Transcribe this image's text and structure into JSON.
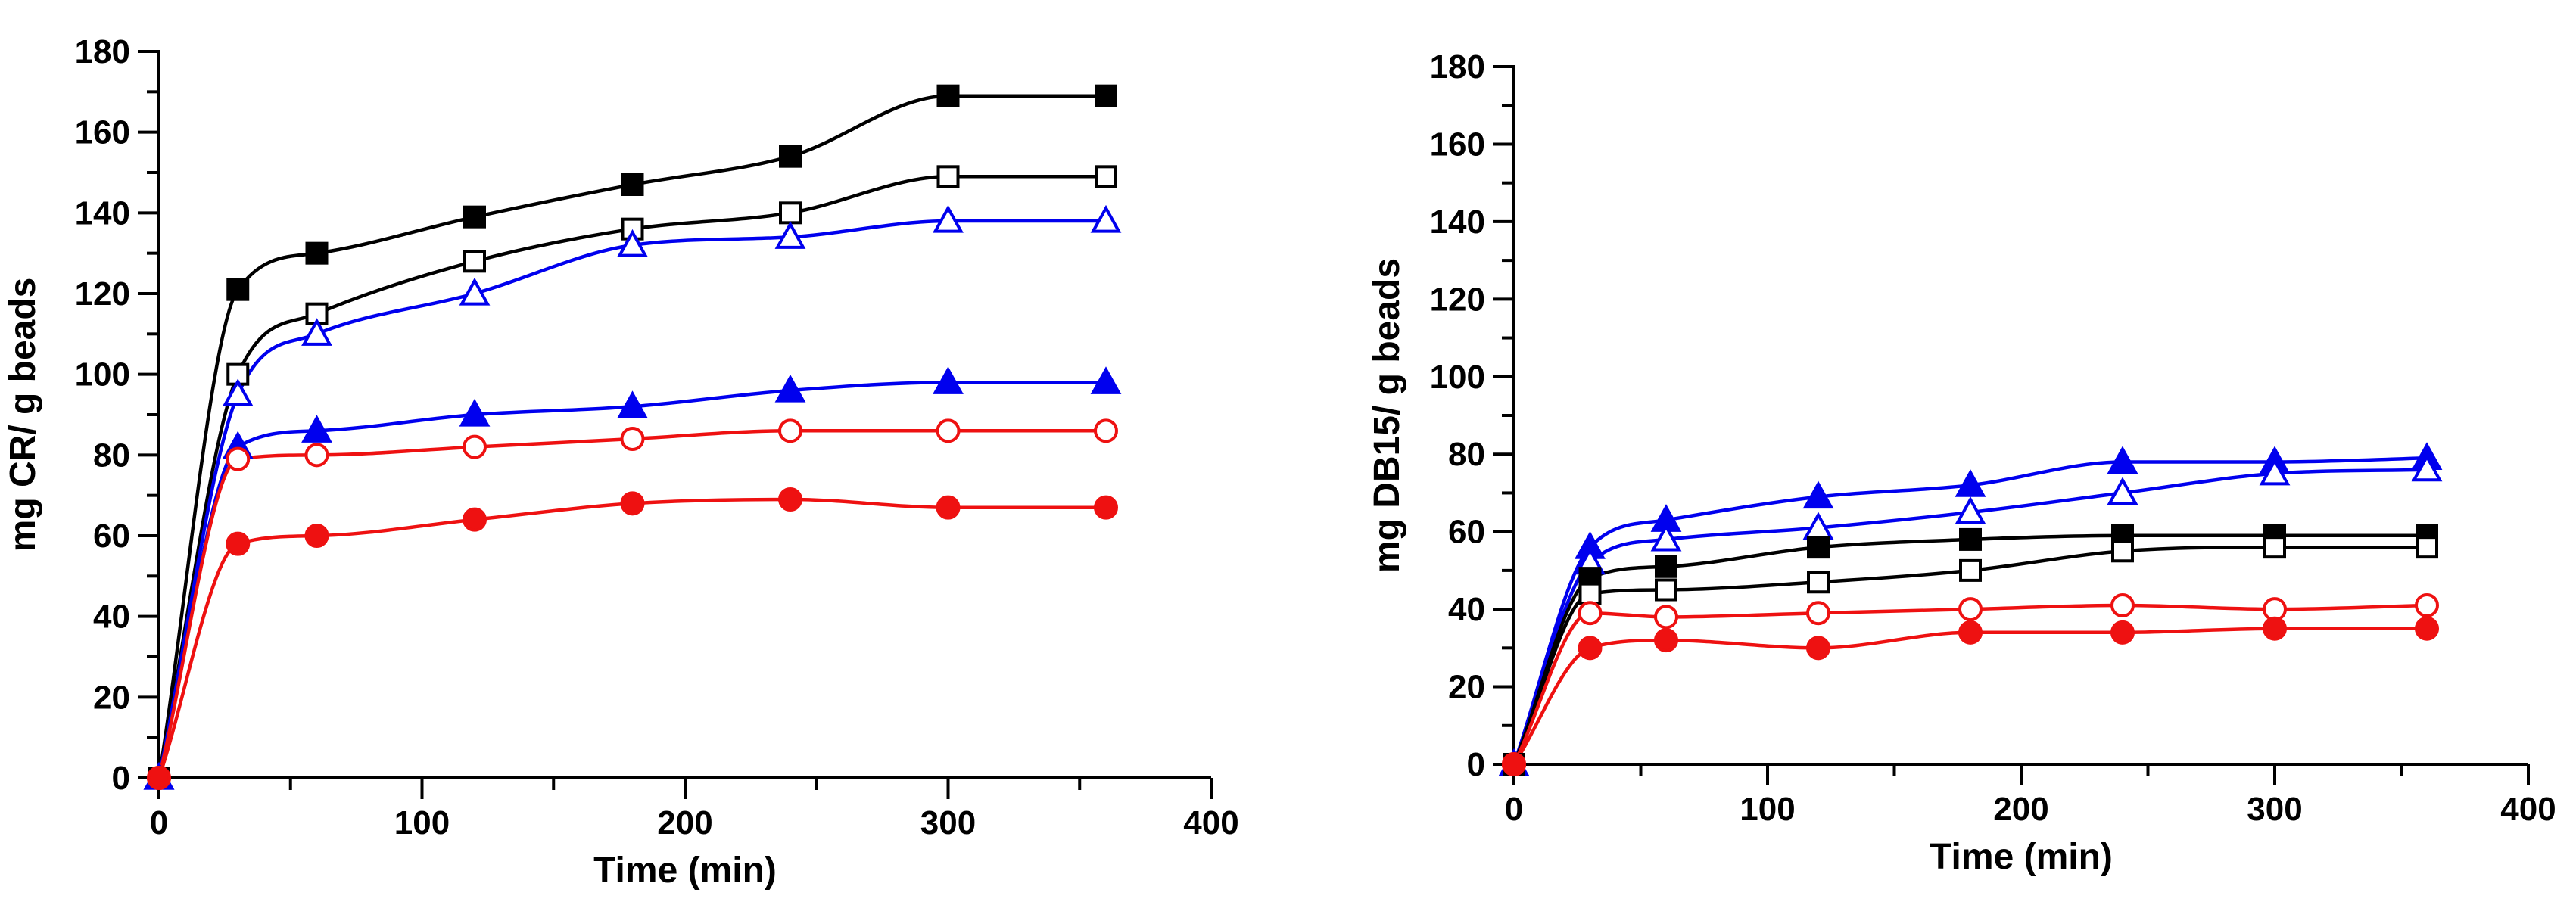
{
  "chart_data": [
    {
      "type": "line",
      "title": "",
      "xlabel": "Time (min)",
      "ylabel": "mg CR/ g beads",
      "xlim": [
        0,
        400
      ],
      "ylim": [
        0,
        180
      ],
      "xticks": [
        0,
        100,
        200,
        300,
        400
      ],
      "yticks": [
        0,
        20,
        40,
        60,
        80,
        100,
        120,
        140,
        160,
        180
      ],
      "xtick_labels": [
        "0",
        "100",
        "200",
        "300",
        "400"
      ],
      "ytick_labels": [
        "0",
        "20",
        "40",
        "60",
        "80",
        "100",
        "120",
        "140",
        "160",
        "180"
      ],
      "grid": false,
      "legend": "none",
      "x": [
        0,
        30,
        60,
        120,
        180,
        240,
        300,
        360
      ],
      "series": [
        {
          "name": "black-filled-square",
          "color": "#000000",
          "marker": "square",
          "filled": true,
          "values": [
            0,
            121,
            130,
            139,
            147,
            154,
            169,
            169
          ]
        },
        {
          "name": "black-open-square",
          "color": "#000000",
          "marker": "square",
          "filled": false,
          "values": [
            0,
            100,
            115,
            128,
            136,
            140,
            149,
            149
          ]
        },
        {
          "name": "blue-open-triangle",
          "color": "#0000ee",
          "marker": "triangle",
          "filled": false,
          "values": [
            0,
            95,
            110,
            120,
            132,
            134,
            138,
            138
          ]
        },
        {
          "name": "blue-filled-triangle",
          "color": "#0000ee",
          "marker": "triangle",
          "filled": true,
          "values": [
            0,
            82,
            86,
            90,
            92,
            96,
            98,
            98
          ]
        },
        {
          "name": "red-open-circle",
          "color": "#ee1111",
          "marker": "circle",
          "filled": false,
          "values": [
            0,
            79,
            80,
            82,
            84,
            86,
            86,
            86
          ]
        },
        {
          "name": "red-filled-circle",
          "color": "#ee1111",
          "marker": "circle",
          "filled": true,
          "values": [
            0,
            58,
            60,
            64,
            68,
            69,
            67,
            67
          ]
        }
      ]
    },
    {
      "type": "line",
      "title": "",
      "xlabel": "Time (min)",
      "ylabel": "mg DB15/ g beads",
      "xlim": [
        0,
        400
      ],
      "ylim": [
        0,
        180
      ],
      "xticks": [
        0,
        100,
        200,
        300,
        400
      ],
      "yticks": [
        0,
        20,
        40,
        60,
        80,
        100,
        120,
        140,
        160,
        180
      ],
      "xtick_labels": [
        "0",
        "100",
        "200",
        "300",
        "400"
      ],
      "ytick_labels": [
        "0",
        "20",
        "40",
        "60",
        "80",
        "100",
        "120",
        "140",
        "160",
        "180"
      ],
      "grid": false,
      "legend": "none",
      "x": [
        0,
        30,
        60,
        120,
        180,
        240,
        300,
        360
      ],
      "series": [
        {
          "name": "blue-filled-triangle",
          "color": "#0000ee",
          "marker": "triangle",
          "filled": true,
          "values": [
            0,
            56,
            63,
            69,
            72,
            78,
            78,
            79
          ]
        },
        {
          "name": "blue-open-triangle",
          "color": "#0000ee",
          "marker": "triangle",
          "filled": false,
          "values": [
            0,
            52,
            58,
            61,
            65,
            70,
            75,
            76
          ]
        },
        {
          "name": "black-filled-square",
          "color": "#000000",
          "marker": "square",
          "filled": true,
          "values": [
            0,
            48,
            51,
            56,
            58,
            59,
            59,
            59
          ]
        },
        {
          "name": "black-open-square",
          "color": "#000000",
          "marker": "square",
          "filled": false,
          "values": [
            0,
            44,
            45,
            47,
            50,
            55,
            56,
            56
          ]
        },
        {
          "name": "red-open-circle",
          "color": "#ee1111",
          "marker": "circle",
          "filled": false,
          "values": [
            0,
            39,
            38,
            39,
            40,
            41,
            40,
            41
          ]
        },
        {
          "name": "red-filled-circle",
          "color": "#ee1111",
          "marker": "circle",
          "filled": true,
          "values": [
            0,
            30,
            32,
            30,
            34,
            34,
            35,
            35
          ]
        }
      ]
    }
  ]
}
